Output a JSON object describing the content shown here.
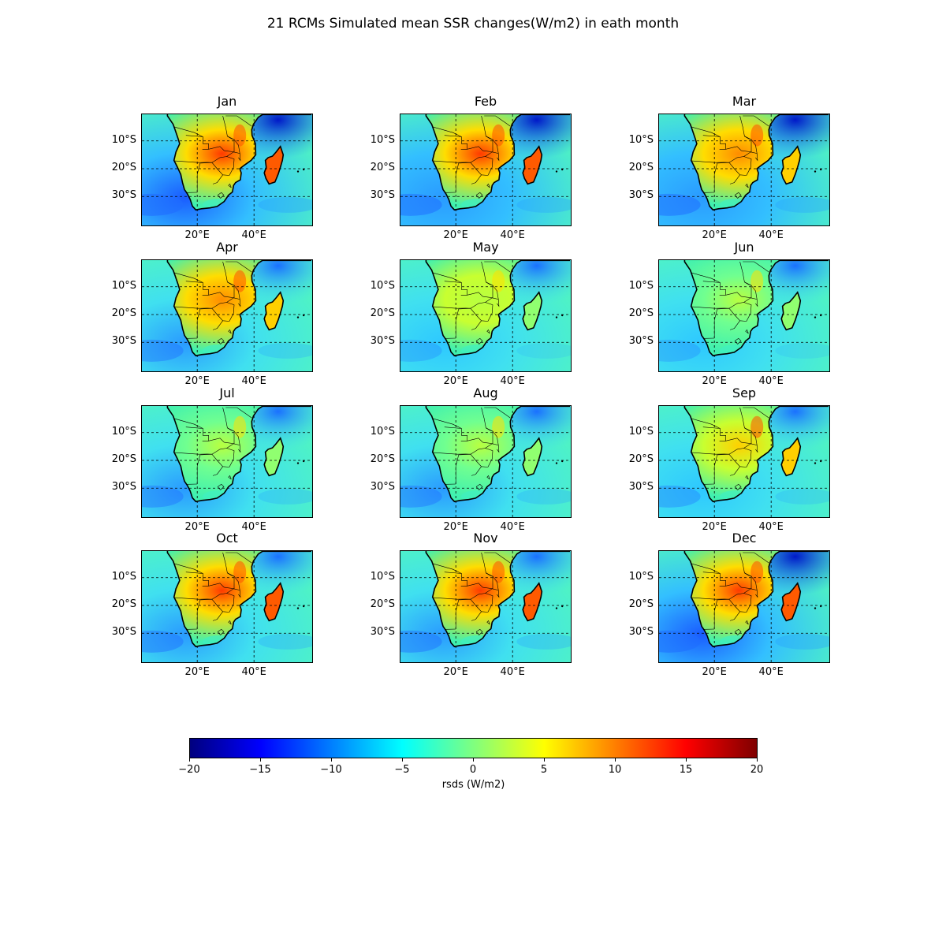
{
  "figure": {
    "title": "21 RCMs Simulated mean SSR changes(W/m2) in eath month"
  },
  "lat_labels": [
    "10°S",
    "20°S",
    "30°S"
  ],
  "lon_labels": [
    "20°E",
    "40°E"
  ],
  "panels": [
    {
      "month": "Jan",
      "warm": 0.85,
      "cool": 0.8
    },
    {
      "month": "Feb",
      "warm": 0.85,
      "cool": 0.7
    },
    {
      "month": "Mar",
      "warm": 0.7,
      "cool": 0.7
    },
    {
      "month": "Apr",
      "warm": 0.7,
      "cool": 0.55
    },
    {
      "month": "May",
      "warm": 0.4,
      "cool": 0.35
    },
    {
      "month": "Jun",
      "warm": 0.25,
      "cool": 0.35
    },
    {
      "month": "Jul",
      "warm": 0.3,
      "cool": 0.55
    },
    {
      "month": "Aug",
      "warm": 0.35,
      "cool": 0.55
    },
    {
      "month": "Sep",
      "warm": 0.6,
      "cool": 0.45
    },
    {
      "month": "Oct",
      "warm": 0.95,
      "cool": 0.6
    },
    {
      "month": "Nov",
      "warm": 0.85,
      "cool": 0.6
    },
    {
      "month": "Dec",
      "warm": 0.85,
      "cool": 0.75
    }
  ],
  "colorbar": {
    "label": "rsds (W/m2)",
    "min": -20,
    "max": 20,
    "ticks": [
      "−20",
      "−15",
      "−10",
      "−5",
      "0",
      "5",
      "10",
      "15",
      "20"
    ],
    "colormap": "jet",
    "stops": [
      "#00007f",
      "#0000ff",
      "#007fff",
      "#00ffff",
      "#7fff7f",
      "#ffff00",
      "#ff7f00",
      "#ff0000",
      "#7f0000"
    ]
  }
}
